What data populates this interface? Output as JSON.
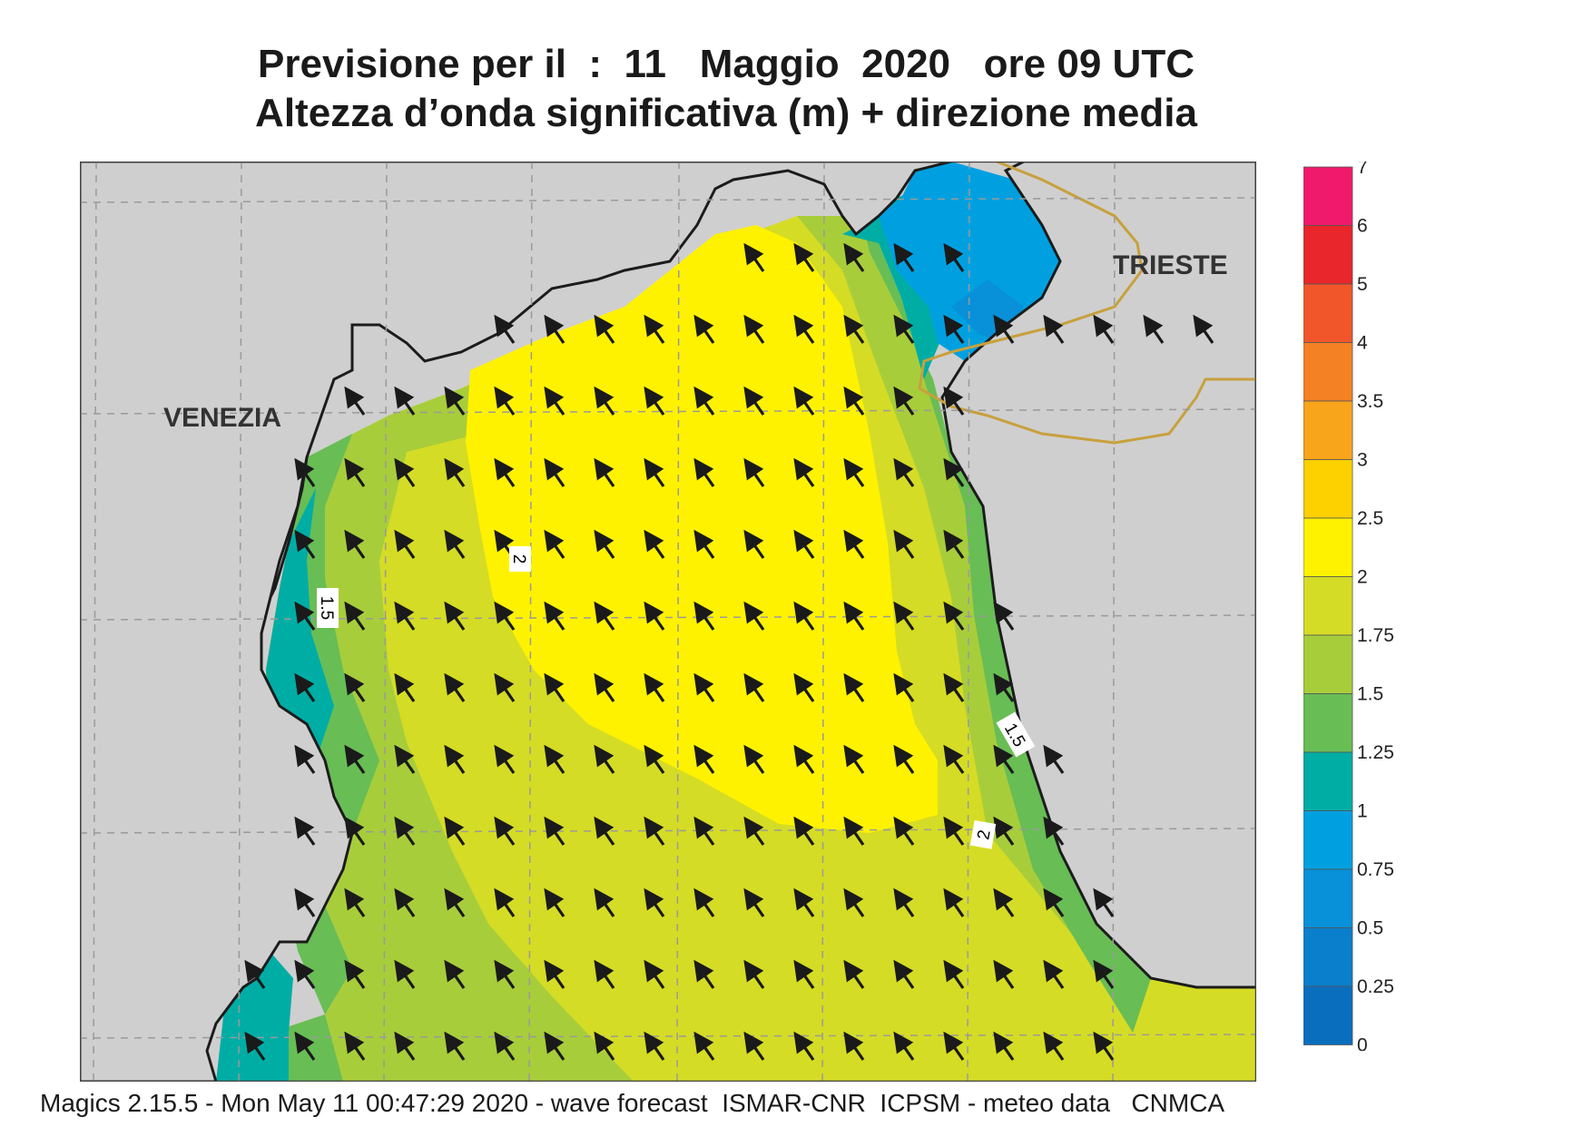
{
  "title": {
    "line1": "Previsione per il  :  11   Maggio  2020   ore 09 UTC",
    "line2": "Altezza d’onda significativa (m) + direzione media"
  },
  "places": {
    "venezia": "VENEZIA",
    "trieste": "TRIESTE"
  },
  "contour_labels": [
    "1.5",
    "2",
    "1.5",
    "2"
  ],
  "legend": {
    "ticks": [
      "7",
      "6",
      "5",
      "4",
      "3.5",
      "3",
      "2.5",
      "2",
      "1.75",
      "1.5",
      "1.25",
      "1",
      "0.75",
      "0.5",
      "0.25",
      "0"
    ],
    "colors_top_to_bottom": [
      "#ef1a6b",
      "#e8262b",
      "#f0562a",
      "#f48124",
      "#f9a51c",
      "#fdd000",
      "#fff200",
      "#d5dc25",
      "#a8cd3b",
      "#68bd55",
      "#00ada5",
      "#00a0e0",
      "#0890d8",
      "#0a7fcc",
      "#0a6ebf"
    ]
  },
  "wave_direction": "north-west",
  "colors": {
    "land": "#cfcfcf",
    "coast": "#1c1c1c",
    "border": "#c8a03c",
    "grid": "#9a9a9a"
  },
  "footer": "Magics 2.15.5 - Mon May 11 00:47:29 2020 - wave forecast  ISMAR-CNR  ICPSM - meteo data   CNMCA"
}
